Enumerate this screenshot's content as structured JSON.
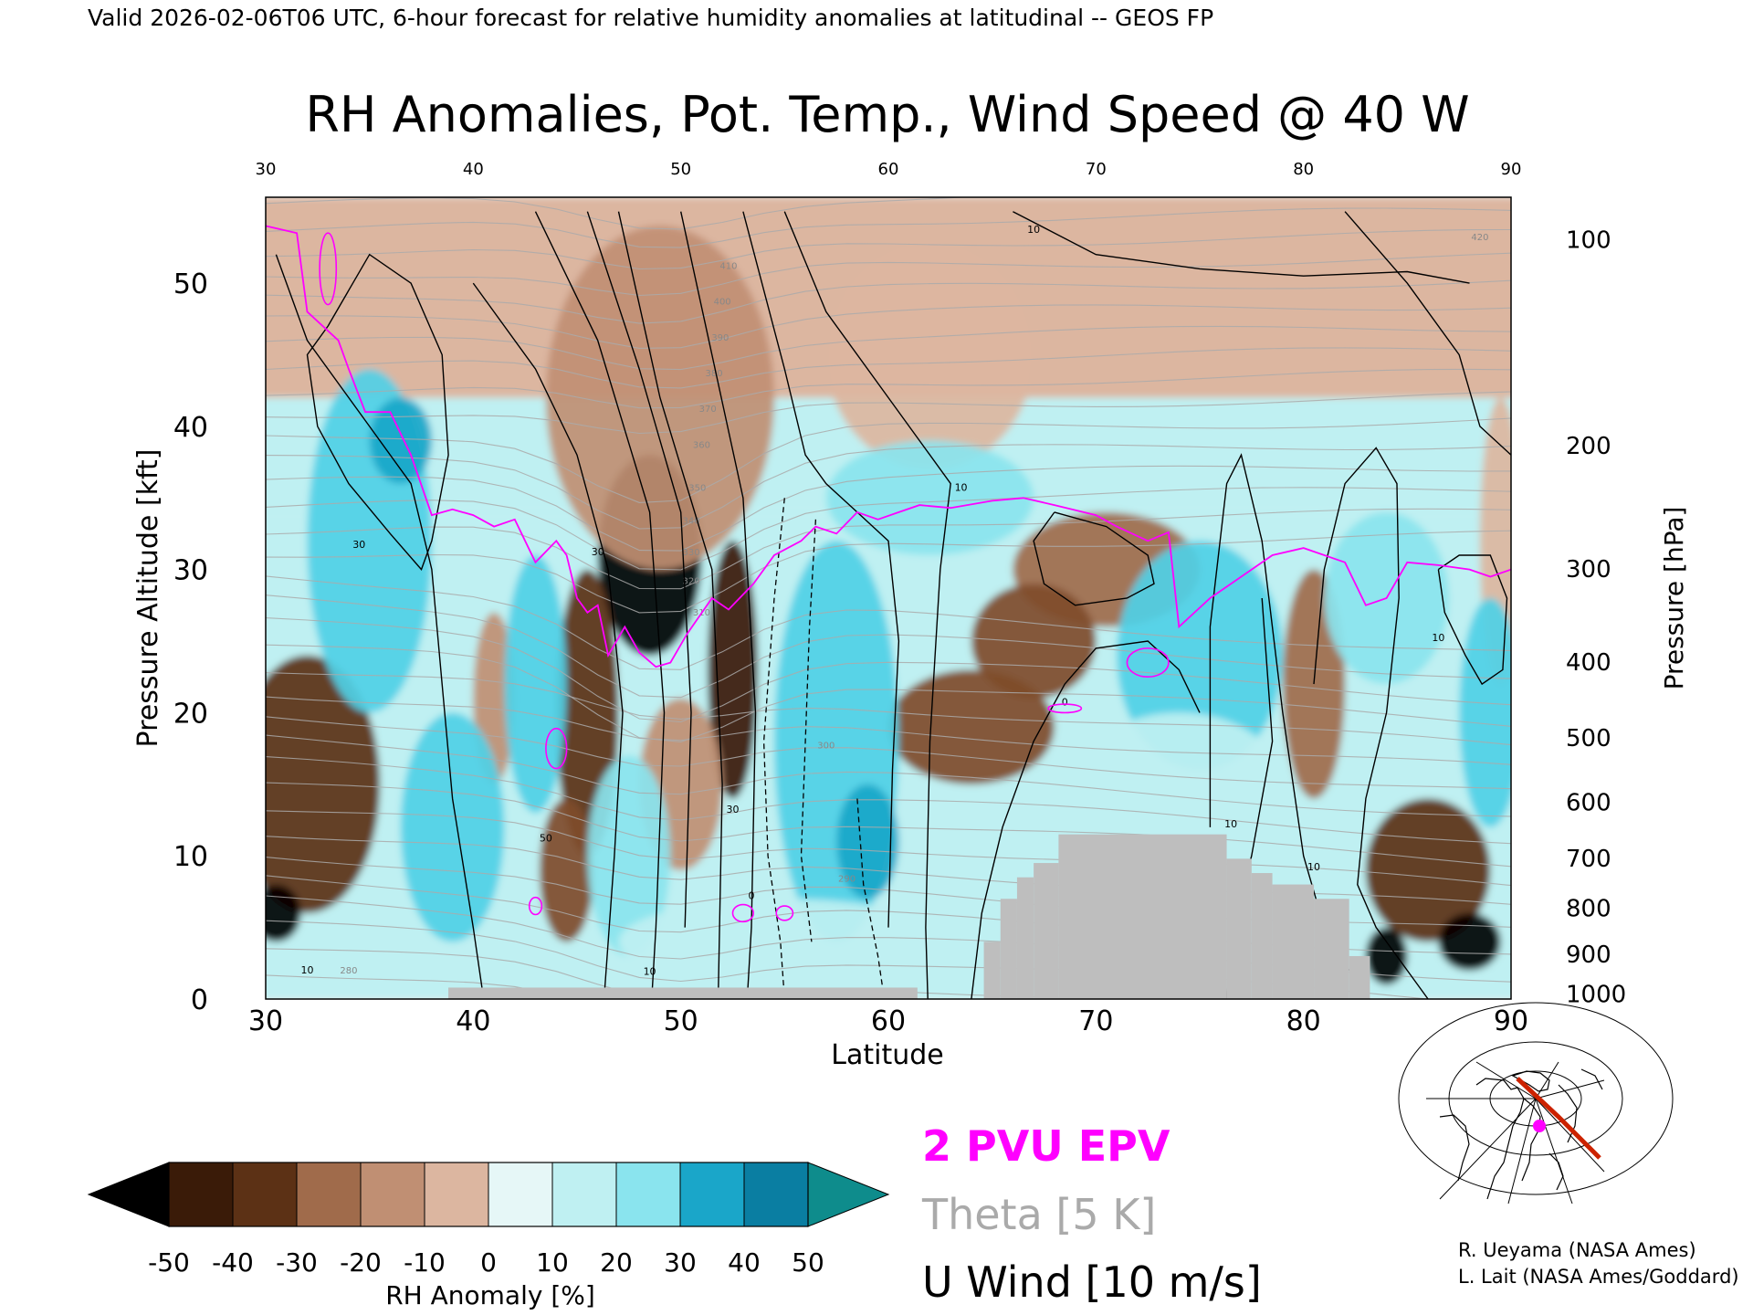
{
  "header": {
    "valid_line": "Valid 2026-02-06T06 UTC, 6-hour forecast for relative humidity anomalies at latitudinal -- GEOS FP"
  },
  "chart_data": {
    "type": "heatmap",
    "title": "RH Anomalies, Pot. Temp., Wind Speed @ 40 W",
    "xlabel": "Latitude",
    "ylabel_left": "Pressure Altitude [kft]",
    "ylabel_right": "Pressure [hPa]",
    "xlim": [
      30,
      90
    ],
    "ylim": [
      0,
      56
    ],
    "x_ticks": [
      30,
      40,
      50,
      60,
      70,
      80,
      90
    ],
    "x_tick_labels": [
      "30",
      "40",
      "50",
      "60",
      "70",
      "80",
      "90"
    ],
    "y_ticks": [
      0,
      10,
      20,
      30,
      40,
      50
    ],
    "y_tick_labels": [
      "0",
      "10",
      "20",
      "30",
      "40",
      "50"
    ],
    "pressure_ticks": [
      {
        "hpa": 100,
        "kft": 53.1,
        "label": "100"
      },
      {
        "hpa": 200,
        "kft": 38.7,
        "label": "200"
      },
      {
        "hpa": 300,
        "kft": 30.1,
        "label": "300"
      },
      {
        "hpa": 400,
        "kft": 23.6,
        "label": "400"
      },
      {
        "hpa": 500,
        "kft": 18.3,
        "label": "500"
      },
      {
        "hpa": 600,
        "kft": 13.8,
        "label": "600"
      },
      {
        "hpa": 700,
        "kft": 9.9,
        "label": "700"
      },
      {
        "hpa": 800,
        "kft": 6.4,
        "label": "800"
      },
      {
        "hpa": 900,
        "kft": 3.2,
        "label": "900"
      },
      {
        "hpa": 1000,
        "kft": 0.4,
        "label": "1000"
      }
    ],
    "rh_anomaly_blobs": [
      {
        "lat": 48.5,
        "kft": 31,
        "value": -65,
        "rlat": 2.5,
        "rkft": 7
      },
      {
        "lat": 52.5,
        "kft": 23,
        "value": -48,
        "rlat": 1.2,
        "rkft": 9
      },
      {
        "lat": 45.5,
        "kft": 20,
        "value": -40,
        "rlat": 1.5,
        "rkft": 10
      },
      {
        "lat": 44.5,
        "kft": 9,
        "value": -32,
        "rlat": 1.3,
        "rkft": 5
      },
      {
        "lat": 50,
        "kft": 15,
        "value": -18,
        "rlat": 2.0,
        "rkft": 6
      },
      {
        "lat": 49,
        "kft": 42,
        "value": -12,
        "rlat": 5.5,
        "rkft": 12
      },
      {
        "lat": 32,
        "kft": 15,
        "value": -40,
        "rlat": 3.5,
        "rkft": 9
      },
      {
        "lat": 30.5,
        "kft": 6,
        "value": -60,
        "rlat": 1.2,
        "rkft": 2
      },
      {
        "lat": 41,
        "kft": 21,
        "value": -18,
        "rlat": 1.0,
        "rkft": 6
      },
      {
        "lat": 64,
        "kft": 19,
        "value": -32,
        "rlat": 4.0,
        "rkft": 4
      },
      {
        "lat": 70.5,
        "kft": 30,
        "value": -22,
        "rlat": 4.5,
        "rkft": 4
      },
      {
        "lat": 67,
        "kft": 25,
        "value": -28,
        "rlat": 3.0,
        "rkft": 4
      },
      {
        "lat": 80.5,
        "kft": 22,
        "value": -22,
        "rlat": 1.5,
        "rkft": 8
      },
      {
        "lat": 86,
        "kft": 9,
        "value": -35,
        "rlat": 3.0,
        "rkft": 5
      },
      {
        "lat": 88,
        "kft": 4,
        "value": -62,
        "rlat": 1.5,
        "rkft": 2
      },
      {
        "lat": 84,
        "kft": 3,
        "value": -55,
        "rlat": 1.0,
        "rkft": 2
      },
      {
        "lat": 89.5,
        "kft": 32,
        "value": -10,
        "rlat": 1.0,
        "rkft": 10
      },
      {
        "lat": 62,
        "kft": 45,
        "value": -6,
        "rlat": 5.0,
        "rkft": 8
      },
      {
        "lat": 35,
        "kft": 32,
        "value": 30,
        "rlat": 3.0,
        "rkft": 12
      },
      {
        "lat": 36.5,
        "kft": 39,
        "value": 42,
        "rlat": 1.5,
        "rkft": 3
      },
      {
        "lat": 39,
        "kft": 12,
        "value": 33,
        "rlat": 2.5,
        "rkft": 8
      },
      {
        "lat": 43,
        "kft": 22,
        "value": 28,
        "rlat": 1.5,
        "rkft": 9
      },
      {
        "lat": 47.5,
        "kft": 10,
        "value": 26,
        "rlat": 2.0,
        "rkft": 7
      },
      {
        "lat": 57.5,
        "kft": 18,
        "value": 32,
        "rlat": 3.0,
        "rkft": 14
      },
      {
        "lat": 59,
        "kft": 11,
        "value": 42,
        "rlat": 1.5,
        "rkft": 4
      },
      {
        "lat": 62,
        "kft": 35,
        "value": 22,
        "rlat": 5.0,
        "rkft": 4
      },
      {
        "lat": 75,
        "kft": 24,
        "value": 28,
        "rlat": 4.0,
        "rkft": 8
      },
      {
        "lat": 74,
        "kft": 15,
        "value": 18,
        "rlat": 5.0,
        "rkft": 5
      },
      {
        "lat": 84,
        "kft": 28,
        "value": 22,
        "rlat": 3.0,
        "rkft": 6
      },
      {
        "lat": 89,
        "kft": 20,
        "value": 28,
        "rlat": 1.5,
        "rkft": 8
      },
      {
        "lat": 55,
        "kft": 4,
        "value": 14,
        "rlat": 8.0,
        "rkft": 3
      }
    ],
    "terrain_mask": [
      {
        "lat_from": 38.8,
        "lat_to": 61.4,
        "kft_to": 0.8
      },
      {
        "lat_from": 64.6,
        "lat_to": 65.4,
        "kft_to": 4.0
      },
      {
        "lat_from": 65.4,
        "lat_to": 66.2,
        "kft_to": 7.0
      },
      {
        "lat_from": 66.2,
        "lat_to": 67.0,
        "kft_to": 8.5
      },
      {
        "lat_from": 67.0,
        "lat_to": 68.2,
        "kft_to": 9.5
      },
      {
        "lat_from": 68.2,
        "lat_to": 76.3,
        "kft_to": 11.5
      },
      {
        "lat_from": 76.3,
        "lat_to": 77.5,
        "kft_to": 9.8
      },
      {
        "lat_from": 77.5,
        "lat_to": 78.5,
        "kft_to": 8.8
      },
      {
        "lat_from": 78.5,
        "lat_to": 80.5,
        "kft_to": 8.0
      },
      {
        "lat_from": 80.5,
        "lat_to": 82.2,
        "kft_to": 7.0
      },
      {
        "lat_from": 82.2,
        "lat_to": 83.2,
        "kft_to": 3.0
      }
    ],
    "theta_levels_K": [
      280,
      290,
      300,
      310,
      320,
      330,
      340,
      350,
      360,
      370,
      380,
      390,
      400,
      410,
      420
    ],
    "theta_labels": [
      "280",
      "290",
      "300",
      "310",
      "320",
      "330",
      "340",
      "350",
      "360",
      "370",
      "380",
      "390",
      "400",
      "410",
      "420"
    ],
    "wind_contour_labels": [
      "10",
      "10",
      "30",
      "30",
      "50",
      "30",
      "10",
      "0",
      "10",
      "0",
      "10",
      "10",
      "0",
      "10"
    ],
    "epv_2pvu_line": [
      [
        30,
        54
      ],
      [
        31.5,
        53.5
      ],
      [
        32,
        48
      ],
      [
        33.5,
        46
      ],
      [
        34,
        44
      ],
      [
        34.8,
        41
      ],
      [
        36,
        41
      ],
      [
        37,
        38
      ],
      [
        38,
        33.8
      ],
      [
        39,
        34.2
      ],
      [
        40,
        33.8
      ],
      [
        41,
        33
      ],
      [
        42,
        33.5
      ],
      [
        43,
        30.5
      ],
      [
        44,
        32
      ],
      [
        44.5,
        31
      ],
      [
        45,
        28
      ],
      [
        45.5,
        27
      ],
      [
        46,
        27.5
      ],
      [
        46.5,
        24
      ],
      [
        47.3,
        26
      ],
      [
        48,
        24.2
      ],
      [
        48.8,
        23.2
      ],
      [
        49.5,
        23.5
      ],
      [
        50.3,
        25.5
      ],
      [
        51.5,
        28
      ],
      [
        52.3,
        27.2
      ],
      [
        53.5,
        29
      ],
      [
        54.5,
        31
      ],
      [
        55.8,
        32
      ],
      [
        56.5,
        33
      ],
      [
        57.5,
        32.5
      ],
      [
        58.5,
        34
      ],
      [
        59.5,
        33.5
      ],
      [
        60.5,
        34
      ],
      [
        61.5,
        34.5
      ],
      [
        63,
        34.3
      ],
      [
        65,
        34.8
      ],
      [
        66.5,
        35
      ],
      [
        68,
        34.5
      ],
      [
        70,
        33.8
      ],
      [
        71,
        33
      ],
      [
        72.5,
        32
      ],
      [
        73.5,
        32.6
      ],
      [
        74,
        26
      ],
      [
        75.5,
        28
      ],
      [
        77,
        29.5
      ],
      [
        78.5,
        31
      ],
      [
        80,
        31.5
      ],
      [
        82,
        30.5
      ],
      [
        83,
        27.5
      ],
      [
        84,
        28
      ],
      [
        85,
        30.5
      ],
      [
        86.5,
        30.3
      ],
      [
        88,
        30
      ],
      [
        89,
        29.5
      ],
      [
        90,
        30
      ]
    ]
  },
  "colorbar": {
    "ticks": [
      "-50",
      "-40",
      "-30",
      "-20",
      "-10",
      "0",
      "10",
      "20",
      "30",
      "40",
      "50"
    ],
    "label": "RH Anomaly [%]",
    "colors": [
      "#3a1b08",
      "#5c3115",
      "#7f4c2b",
      "#a06b4b",
      "#c08f73",
      "#dcb6a0",
      "#f0ddd1",
      "#e6f7f7",
      "#bff0f2",
      "#8ae4ee",
      "#4fd0e6",
      "#1aa6c9",
      "#0a7ea2"
    ],
    "under_color": "#000000",
    "over_color": "#0e8c8c"
  },
  "legend": {
    "epv": "2 PVU EPV",
    "theta": "Theta [5 K]",
    "wind": "U Wind [10 m/s]",
    "epv_color": "#ff00ff",
    "theta_color": "#aaaaaa",
    "wind_color": "#000000"
  },
  "map_inset": {
    "description_icon": "polar-map-icon",
    "track_color": "#cc2200",
    "marker_color": "#ff00ff"
  },
  "credits": {
    "line1": "R. Ueyama (NASA Ames)",
    "line2": "L. Lait (NASA Ames/Goddard)"
  }
}
